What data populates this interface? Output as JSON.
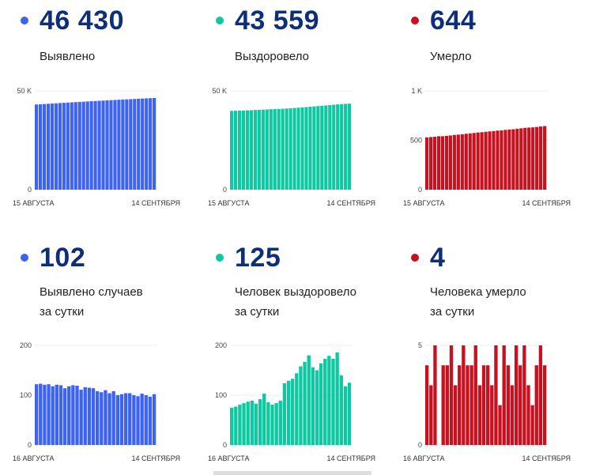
{
  "cards": [
    {
      "value": "46 430",
      "label": [
        "Выявлено"
      ],
      "color": "#3d63f5",
      "y_ticks": [
        "0",
        "50 K"
      ],
      "ymax": 50000,
      "dates": [
        "15 АВГУСТА",
        "14 СЕНТЯБРЯ"
      ],
      "series": [
        43110,
        43232,
        43355,
        43476,
        43598,
        43716,
        43837,
        43957,
        44071,
        44189,
        44309,
        44428,
        44539,
        44655,
        44770,
        44884,
        44992,
        45098,
        45208,
        45312,
        45420,
        45520,
        45622,
        45726,
        45830,
        45930,
        46028,
        46131,
        46231,
        46328,
        46430
      ]
    },
    {
      "value": "43 559",
      "label": [
        "Выздоровело"
      ],
      "color": "#0dc8a0",
      "y_ticks": [
        "0",
        "50 K"
      ],
      "ymax": 50000,
      "dates": [
        "15 АВГУСТА",
        "14 СЕНТЯБРЯ"
      ],
      "series": [
        39849,
        39924,
        40001,
        40082,
        40166,
        40253,
        40342,
        40425,
        40517,
        40620,
        40706,
        40787,
        40871,
        40960,
        41084,
        41213,
        41346,
        41490,
        41648,
        41815,
        41995,
        42151,
        42301,
        42465,
        42638,
        42817,
        42990,
        43176,
        43316,
        43434,
        43559
      ]
    },
    {
      "value": "644",
      "label": [
        "Умерло"
      ],
      "color": "#c8101e",
      "y_ticks": [
        "0",
        "500",
        "1 K"
      ],
      "ymax": 1000,
      "dates": [
        "15 АВГУСТА",
        "14 СЕНТЯБРЯ"
      ],
      "series": [
        529,
        533,
        536,
        541,
        541,
        545,
        549,
        554,
        557,
        561,
        566,
        570,
        574,
        579,
        582,
        586,
        590,
        593,
        598,
        600,
        605,
        609,
        612,
        617,
        621,
        626,
        629,
        631,
        635,
        640,
        644
      ]
    },
    {
      "value": "102",
      "label": [
        "Выявлено случаев",
        "за сутки"
      ],
      "color": "#3d63f5",
      "y_ticks": [
        "0",
        "100",
        "200"
      ],
      "ymax": 200,
      "dates": [
        "16 АВГУСТА",
        "14 СЕНТЯБРЯ"
      ],
      "series": [
        122,
        123,
        121,
        122,
        118,
        121,
        120,
        114,
        118,
        120,
        119,
        111,
        116,
        115,
        114,
        108,
        106,
        110,
        104,
        108,
        100,
        102,
        104,
        104,
        100,
        98,
        103,
        100,
        97,
        102
      ]
    },
    {
      "value": "125",
      "label": [
        "Человек выздоровело",
        "за сутки"
      ],
      "color": "#0dc8a0",
      "y_ticks": [
        "0",
        "100",
        "200"
      ],
      "ymax": 200,
      "dates": [
        "16 АВГУСТА",
        "14 СЕНТЯБРЯ"
      ],
      "series": [
        75,
        77,
        81,
        84,
        87,
        89,
        83,
        92,
        103,
        86,
        81,
        84,
        89,
        124,
        129,
        133,
        144,
        158,
        167,
        180,
        156,
        150,
        164,
        173,
        179,
        173,
        186,
        140,
        118,
        125
      ]
    },
    {
      "value": "4",
      "label": [
        "Человека умерло",
        "за сутки"
      ],
      "color": "#c8101e",
      "y_ticks": [
        "0",
        "5"
      ],
      "ymax": 5,
      "dates": [
        "16 АВГУСТА",
        "14 СЕНТЯБРЯ"
      ],
      "series": [
        4,
        3,
        5,
        0,
        4,
        4,
        5,
        3,
        4,
        5,
        4,
        4,
        5,
        3,
        4,
        4,
        3,
        5,
        2,
        5,
        4,
        3,
        5,
        4,
        5,
        3,
        2,
        4,
        5,
        4
      ]
    }
  ]
}
